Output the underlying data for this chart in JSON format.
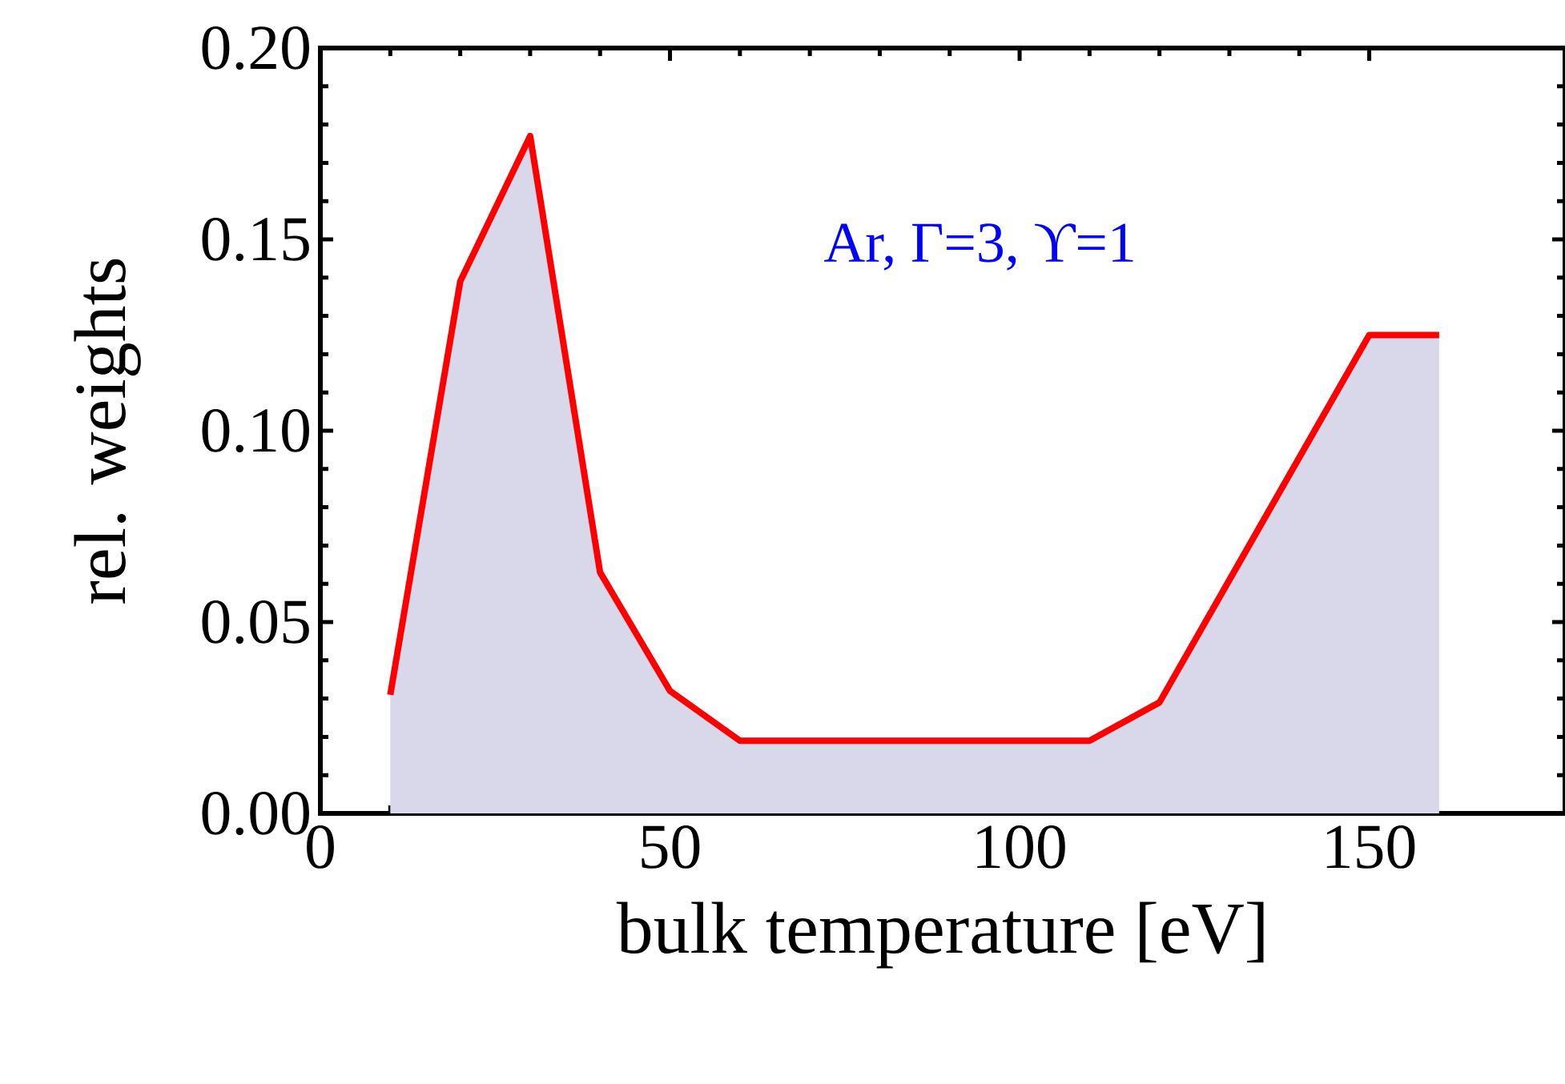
{
  "chart_data": {
    "type": "area",
    "xlabel": "bulk temperature [eV]",
    "ylabel": "rel. weights",
    "annotations": [
      "Ar, Γ=3, ϒ=1"
    ],
    "x": [
      10,
      20,
      30,
      40,
      50,
      60,
      110,
      120,
      150,
      160
    ],
    "series": [
      {
        "color": "#ff0000",
        "values": [
          0.031,
          0.139,
          0.177,
          0.063,
          0.032,
          0.019,
          0.019,
          0.029,
          0.125,
          0.125
        ]
      }
    ],
    "xlim": [
      0,
      178
    ],
    "ylim": [
      0,
      0.2
    ],
    "xticks": [
      0,
      50,
      100,
      150
    ],
    "yticks": [
      {
        "value": 0,
        "label": "0.00"
      },
      {
        "value": 0.05,
        "label": "0.05"
      },
      {
        "value": 0.1,
        "label": "0.10"
      },
      {
        "value": 0.15,
        "label": "0.15"
      },
      {
        "value": 0.2,
        "label": "0.20"
      }
    ],
    "tick_labels": "xy"
  }
}
